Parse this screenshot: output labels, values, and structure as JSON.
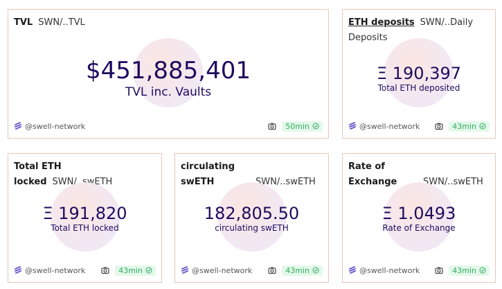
{
  "cards": [
    {
      "title": "TVL",
      "query": "SWN/..TVL",
      "value": "$451,885,401",
      "label": "TVL inc. Vaults",
      "author": "@swell-network",
      "age": "50min"
    },
    {
      "title": "ETH deposits",
      "query": "SWN/..Daily Deposits",
      "value": "Ξ 190,397",
      "label": "Total ETH deposited",
      "author": "@swell-network",
      "age": "43min"
    },
    {
      "title": "Total ETH locked",
      "query": "SWN/..swETH",
      "value": "Ξ 191,820",
      "label": "Total ETH locked",
      "author": "@swell-network",
      "age": "43min"
    },
    {
      "title": "circulating swETH",
      "query": "SWN/..swETH",
      "value": "182,805.50",
      "label": "circulating swETH",
      "author": "@swell-network",
      "age": "43min"
    },
    {
      "title": "Rate of Exchange",
      "query": "SWN/..swETH",
      "value": "Ξ 1.0493",
      "label": "Rate of Exchange",
      "author": "@swell-network",
      "age": "43min"
    }
  ],
  "colors": {
    "value": "#1e0b5e",
    "border": "#e6c6bb",
    "badge_bg": "#e3f8ea",
    "badge_text": "#2fae5e"
  },
  "icons": {
    "author": "swell-logo-icon",
    "snapshot": "camera-icon",
    "status": "check-circle-icon"
  }
}
